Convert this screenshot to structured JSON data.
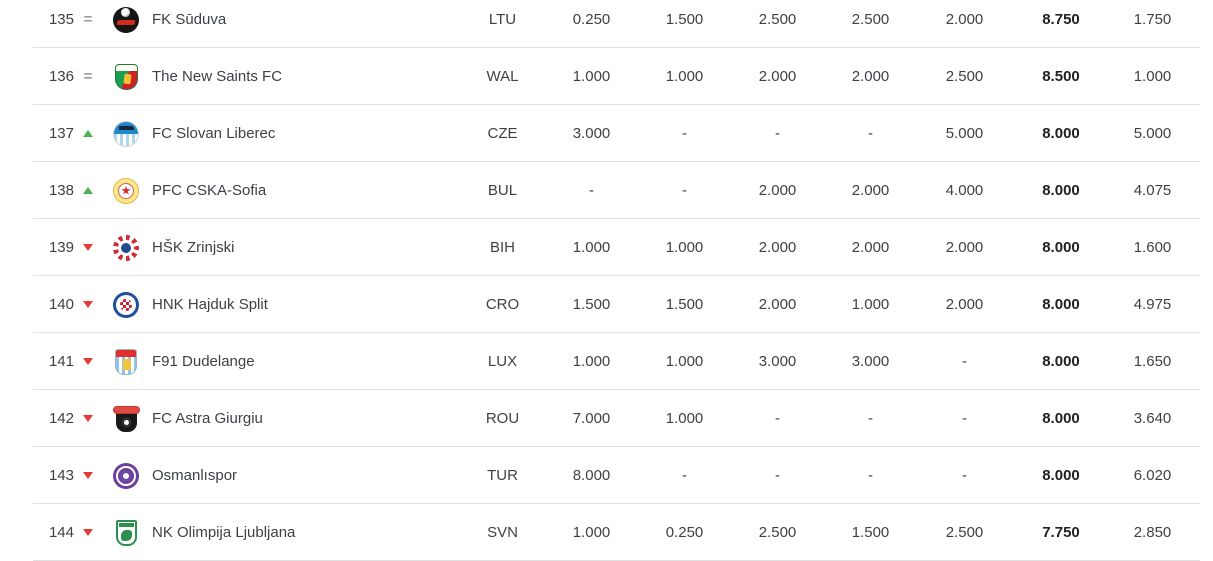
{
  "colors": {
    "up": "#4caf50",
    "down": "#e53935",
    "same": "#9e9e9e",
    "divider": "#e0e0e0",
    "text": "#3d4145",
    "total": "#212121"
  },
  "table": {
    "rows": [
      {
        "rank": "135",
        "movement": "same",
        "club": "FK Sūduva",
        "country": "LTU",
        "values": [
          "0.250",
          "1.500",
          "2.500",
          "2.500",
          "2.000"
        ],
        "total": "8.750",
        "last": "1.750",
        "logo": "suduva"
      },
      {
        "rank": "136",
        "movement": "same",
        "club": "The New Saints FC",
        "country": "WAL",
        "values": [
          "1.000",
          "1.000",
          "2.000",
          "2.000",
          "2.500"
        ],
        "total": "8.500",
        "last": "1.000",
        "logo": "tns"
      },
      {
        "rank": "137",
        "movement": "up",
        "club": "FC Slovan Liberec",
        "country": "CZE",
        "values": [
          "3.000",
          "-",
          "-",
          "-",
          "5.000"
        ],
        "total": "8.000",
        "last": "5.000",
        "logo": "liberec"
      },
      {
        "rank": "138",
        "movement": "up",
        "club": "PFC CSKA-Sofia",
        "country": "BUL",
        "values": [
          "-",
          "-",
          "2.000",
          "2.000",
          "4.000"
        ],
        "total": "8.000",
        "last": "4.075",
        "logo": "cska"
      },
      {
        "rank": "139",
        "movement": "down",
        "club": "HŠK Zrinjski",
        "country": "BIH",
        "values": [
          "1.000",
          "1.000",
          "2.000",
          "2.000",
          "2.000"
        ],
        "total": "8.000",
        "last": "1.600",
        "logo": "zrinjski"
      },
      {
        "rank": "140",
        "movement": "down",
        "club": "HNK Hajduk Split",
        "country": "CRO",
        "values": [
          "1.500",
          "1.500",
          "2.000",
          "1.000",
          "2.000"
        ],
        "total": "8.000",
        "last": "4.975",
        "logo": "hajduk"
      },
      {
        "rank": "141",
        "movement": "down",
        "club": "F91 Dudelange",
        "country": "LUX",
        "values": [
          "1.000",
          "1.000",
          "3.000",
          "3.000",
          "-"
        ],
        "total": "8.000",
        "last": "1.650",
        "logo": "dudelange"
      },
      {
        "rank": "142",
        "movement": "down",
        "club": "FC Astra Giurgiu",
        "country": "ROU",
        "values": [
          "7.000",
          "1.000",
          "-",
          "-",
          "-"
        ],
        "total": "8.000",
        "last": "3.640",
        "logo": "astra"
      },
      {
        "rank": "143",
        "movement": "down",
        "club": "Osmanlıspor",
        "country": "TUR",
        "values": [
          "8.000",
          "-",
          "-",
          "-",
          "-"
        ],
        "total": "8.000",
        "last": "6.020",
        "logo": "osmanlispor"
      },
      {
        "rank": "144",
        "movement": "down",
        "club": "NK Olimpija Ljubljana",
        "country": "SVN",
        "values": [
          "1.000",
          "0.250",
          "2.500",
          "1.500",
          "2.500"
        ],
        "total": "7.750",
        "last": "2.850",
        "logo": "olimpija"
      }
    ]
  }
}
